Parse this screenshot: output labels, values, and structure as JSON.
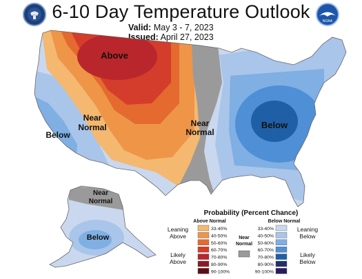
{
  "header": {
    "title": "6-10 Day Temperature Outlook",
    "valid_label": "Valid:",
    "valid_value": "May 3 - 7, 2023",
    "issued_label": "Issued:",
    "issued_value": "April 27, 2023",
    "left_logo": "doc-seal-icon",
    "right_logo": "noaa-logo-icon",
    "noaa_text": "NOAA"
  },
  "map_labels": {
    "above": "Above",
    "near_west_1": "Near",
    "near_west_2": "Normal",
    "below_west": "Below",
    "near_central_1": "Near",
    "near_central_2": "Normal",
    "below_east": "Below",
    "near_alaska_1": "Near",
    "near_alaska_2": "Normal",
    "below_alaska": "Below"
  },
  "legend": {
    "title": "Probability (Percent Chance)",
    "above_header": "Above Normal",
    "below_header": "Below Normal",
    "near_header_1": "Near",
    "near_header_2": "Normal",
    "leaning_above_1": "Leaning",
    "leaning_above_2": "Above",
    "likely_above_1": "Likely",
    "likely_above_2": "Above",
    "leaning_below_1": "Leaning",
    "leaning_below_2": "Below",
    "likely_below_1": "Likely",
    "likely_below_2": "Below",
    "above_bins": [
      {
        "label": "33-40%",
        "color": "#f4b870"
      },
      {
        "label": "40-50%",
        "color": "#ee9548"
      },
      {
        "label": "50-60%",
        "color": "#e46a2f"
      },
      {
        "label": "60-70%",
        "color": "#d43c2b"
      },
      {
        "label": "70-80%",
        "color": "#b9262b"
      },
      {
        "label": "80-90%",
        "color": "#8e1a24"
      },
      {
        "label": "90-100%",
        "color": "#5c0e16"
      }
    ],
    "below_bins": [
      {
        "label": "33-40%",
        "color": "#c9d8ef"
      },
      {
        "label": "40-50%",
        "color": "#a9c5ea"
      },
      {
        "label": "50-60%",
        "color": "#7fafe3"
      },
      {
        "label": "60-70%",
        "color": "#4f8fd6"
      },
      {
        "label": "70-80%",
        "color": "#1f5fa6"
      },
      {
        "label": "80-90%",
        "color": "#23306e"
      },
      {
        "label": "90-100%",
        "color": "#2a1a5e"
      }
    ],
    "near_color": "#9a9a9a"
  }
}
